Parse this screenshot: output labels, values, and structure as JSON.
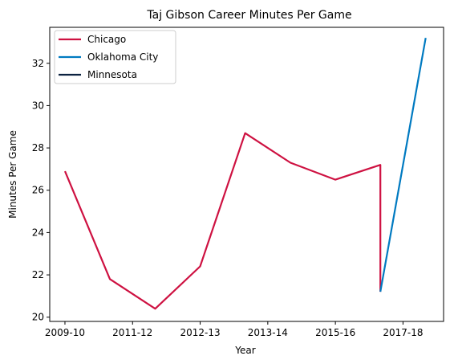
{
  "chart_data": {
    "type": "line",
    "title": "Taj Gibson Career Minutes Per Game",
    "xlabel": "Year",
    "ylabel": "Minutes Per Game",
    "x_tick_labels": [
      "2009-10",
      "2011-12",
      "2012-13",
      "2013-14",
      "2015-16",
      "2017-18"
    ],
    "x_tick_values": [
      0,
      2,
      4,
      6,
      8,
      10
    ],
    "xlim": [
      -0.45,
      11.2
    ],
    "ylim": [
      19.8,
      33.7
    ],
    "y_ticks": [
      20,
      22,
      24,
      26,
      28,
      30,
      32
    ],
    "grid": false,
    "legend_position": "top-left",
    "series": [
      {
        "name": "Chicago",
        "color": "#CE1141",
        "points": [
          {
            "x": 0,
            "y": 26.9
          },
          {
            "x": 1.33,
            "y": 21.8
          },
          {
            "x": 2.67,
            "y": 20.4
          },
          {
            "x": 4.0,
            "y": 22.4
          },
          {
            "x": 5.33,
            "y": 28.7
          },
          {
            "x": 6.67,
            "y": 27.3
          },
          {
            "x": 8.0,
            "y": 26.5
          },
          {
            "x": 9.33,
            "y": 27.2
          },
          {
            "x": 9.33,
            "y": 21.2
          }
        ]
      },
      {
        "name": "Oklahoma City",
        "color": "#007AC1",
        "points": [
          {
            "x": 9.33,
            "y": 21.2
          },
          {
            "x": 10.67,
            "y": 33.2
          }
        ]
      },
      {
        "name": "Minnesota",
        "color": "#0C2340",
        "points": []
      }
    ]
  }
}
